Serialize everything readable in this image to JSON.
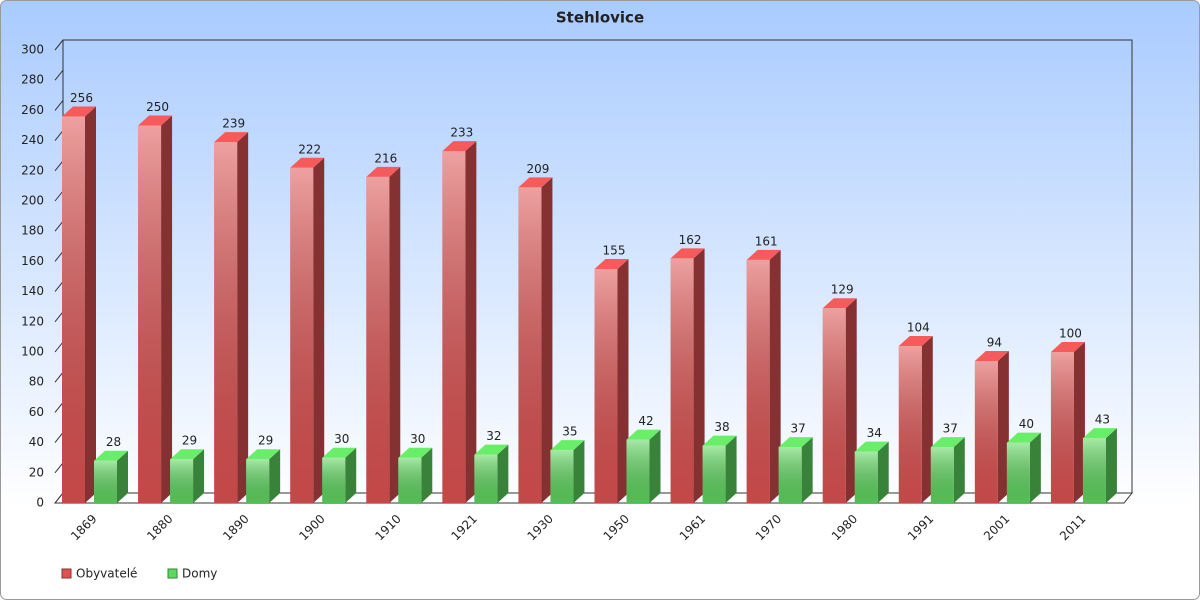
{
  "chart_data": {
    "type": "bar3d",
    "title": "Stehlovice",
    "categories": [
      "1869",
      "1880",
      "1890",
      "1900",
      "1910",
      "1921",
      "1930",
      "1950",
      "1961",
      "1970",
      "1980",
      "1991",
      "2001",
      "2011"
    ],
    "series": [
      {
        "name": "Obyvatelé",
        "color": "#e05252",
        "values": [
          256,
          250,
          239,
          222,
          216,
          233,
          209,
          155,
          162,
          161,
          129,
          104,
          94,
          100
        ]
      },
      {
        "name": "Domy",
        "color": "#5fd85f",
        "values": [
          28,
          29,
          29,
          30,
          30,
          32,
          35,
          42,
          38,
          37,
          34,
          37,
          40,
          43
        ]
      }
    ],
    "ylim": [
      0,
      300
    ],
    "yticks": [
      0,
      20,
      40,
      60,
      80,
      100,
      120,
      140,
      160,
      180,
      200,
      220,
      240,
      260,
      280,
      300
    ]
  }
}
